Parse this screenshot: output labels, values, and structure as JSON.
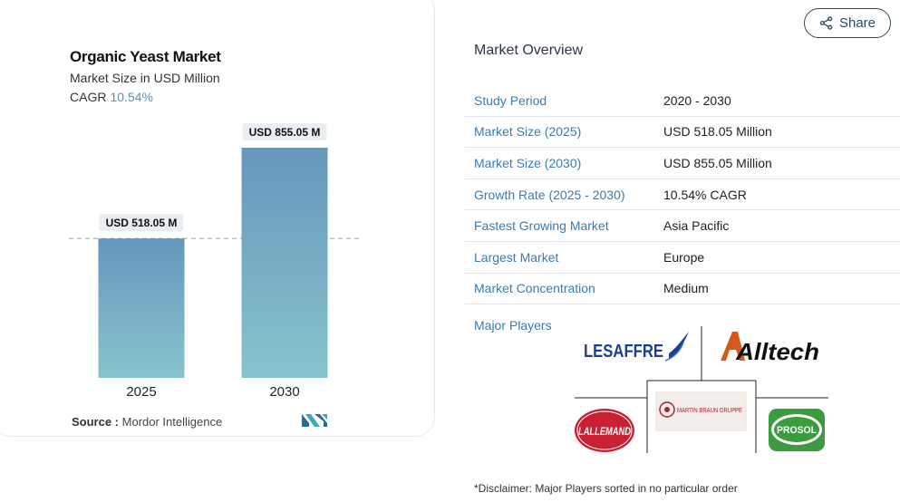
{
  "chart": {
    "title": "Organic Yeast Market",
    "subtitle": "Market Size in USD Million",
    "cagr_label": "CAGR",
    "cagr_value": "10.54%",
    "source_label": "Source :",
    "source_value": "Mordor Intelligence"
  },
  "chart_data": {
    "type": "bar",
    "title": "Organic Yeast Market",
    "subtitle": "Market Size in USD Million",
    "categories": [
      "2025",
      "2030"
    ],
    "values": [
      518.05,
      855.05
    ],
    "data_labels": [
      "USD 518.05 M",
      "USD 855.05 M"
    ],
    "xlabel": "",
    "ylabel": "",
    "ylim": [
      0,
      855.05
    ],
    "grid": false,
    "reference_line_at": 518.05,
    "bar_color_top": "#6597bb",
    "bar_color_bottom": "#86c4cd"
  },
  "share": {
    "label": "Share",
    "icon": "share-icon"
  },
  "overview": {
    "title": "Market Overview",
    "rows": [
      {
        "key": "Study Period",
        "value": "2020 - 2030"
      },
      {
        "key": "Market Size (2025)",
        "value": "USD 518.05 Million"
      },
      {
        "key": "Market Size (2030)",
        "value": "USD 855.05 Million"
      },
      {
        "key": "Growth Rate (2025 - 2030)",
        "value": "10.54% CAGR"
      },
      {
        "key": "Fastest Growing Market",
        "value": "Asia Pacific"
      },
      {
        "key": "Largest Market",
        "value": "Europe"
      },
      {
        "key": "Market Concentration",
        "value": "Medium"
      }
    ],
    "players_label": "Major Players",
    "players": [
      "LESAFFRE",
      "Alltech",
      "MARTIN BRAUN GRUPPE",
      "LALLEMAND",
      "PROSOL"
    ],
    "disclaimer": "*Disclaimer: Major Players sorted in no particular order"
  },
  "colors": {
    "accent_blue": "#3b7cae",
    "cagr_blue": "#5a95b4",
    "share_border": "#2b4a6b"
  }
}
